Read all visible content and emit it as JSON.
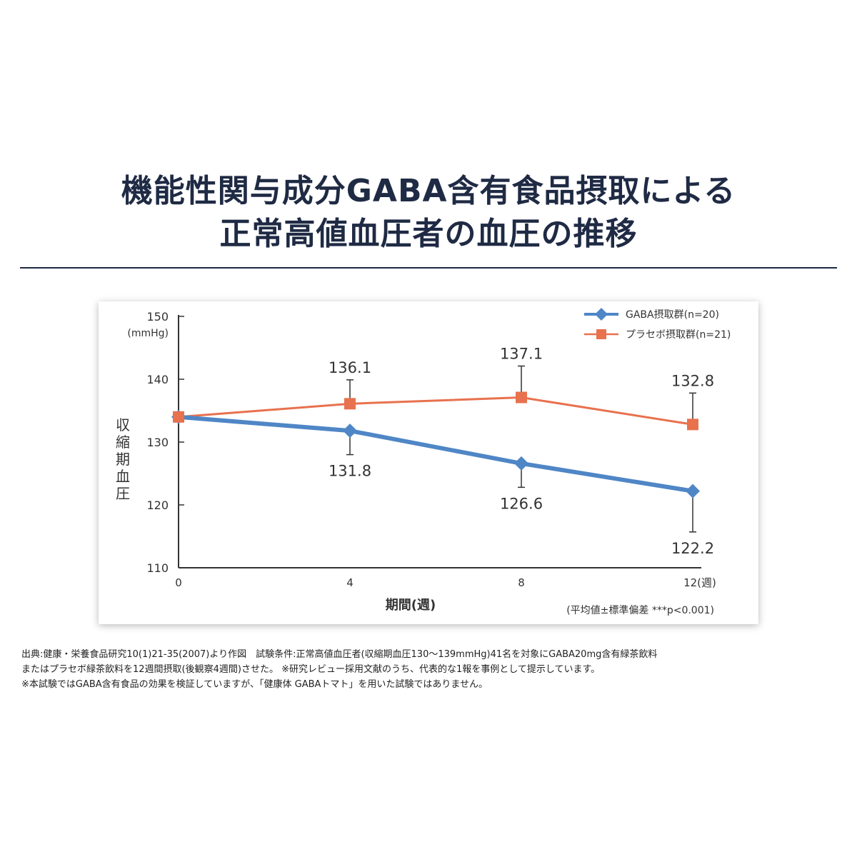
{
  "title": {
    "line1": "機能性関与成分GABA含有食品摂取による",
    "line2": "正常高値血圧者の血圧の推移"
  },
  "colors": {
    "gaba": "#4f86c6",
    "placebo": "#e8714e",
    "axis": "#333333",
    "divider": "#1f2a44"
  },
  "chart_data": {
    "type": "line",
    "title": "",
    "ylabel": "収縮期血圧",
    "yunit": "(mmHg)",
    "xlabel": "期間(週)",
    "x": [
      0,
      4,
      8,
      12
    ],
    "x_tick_labels": [
      "0",
      "4",
      "8",
      "12(週)"
    ],
    "ylim": [
      110,
      150
    ],
    "y_ticks": [
      110,
      120,
      130,
      140,
      150
    ],
    "legend_position": "top-right",
    "note": "(平均値±標準偏差 ***p<0.001)",
    "series": [
      {
        "name": "GABA摂取群(n=20)",
        "marker": "diamond",
        "values": [
          134.0,
          131.8,
          126.6,
          122.2
        ],
        "labels": [
          "",
          "131.8",
          "126.6",
          "122.2"
        ],
        "error": [
          0,
          3.8,
          3.8,
          6.5
        ],
        "label_position": "below"
      },
      {
        "name": "プラセボ摂取群(n=21)",
        "marker": "square",
        "values": [
          134.0,
          136.1,
          137.1,
          132.8
        ],
        "labels": [
          "",
          "136.1",
          "137.1",
          "132.8"
        ],
        "error": [
          0,
          3.8,
          5.0,
          5.0
        ],
        "label_position": "above"
      }
    ]
  },
  "footnotes": {
    "line1": "出典:健康・栄養食品研究10(1)21-35(2007)より作図　試験条件:正常高値血圧者(収縮期血圧130〜139mmHg)41名を対象にGABA20mg含有緑茶飲料",
    "line2": "またはプラセボ緑茶飲料を12週間摂取(後観察4週間)させた。 ※研究レビュー採用文献のうち、代表的な1報を事例として提示しています。",
    "line3": "※本試験ではGABA含有食品の効果を検証していますが、「健康体 GABAトマト」を用いた試験ではありません。"
  }
}
